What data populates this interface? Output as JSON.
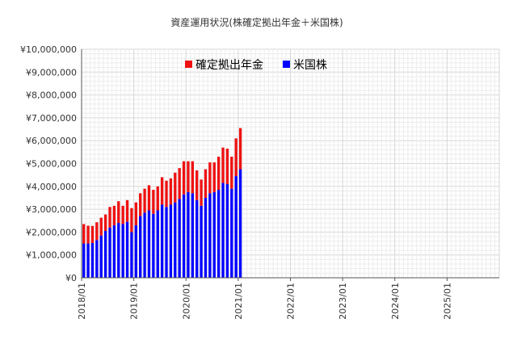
{
  "chart_data": {
    "type": "bar",
    "stacked": true,
    "title": "資産運用状況(株確定拠出年金＋米国株)",
    "xlabel": "",
    "ylabel": "",
    "ylim": [
      0,
      10000000
    ],
    "y_ticks": [
      0,
      1000000,
      2000000,
      3000000,
      4000000,
      5000000,
      6000000,
      7000000,
      8000000,
      9000000,
      10000000
    ],
    "y_tick_labels": [
      "¥0",
      "¥1,000,000",
      "¥2,000,000",
      "¥3,000,000",
      "¥4,000,000",
      "¥5,000,000",
      "¥6,000,000",
      "¥7,000,000",
      "¥8,000,000",
      "¥9,000,000",
      "¥10,000,000"
    ],
    "x_range": [
      "2018-01",
      "2025-12"
    ],
    "x_tick_labels": [
      "2018/01",
      "2019/01",
      "2020/01",
      "2021/01",
      "2022/01",
      "2023/01",
      "2024/01",
      "2025/01"
    ],
    "grid": true,
    "legend_position": "top-center",
    "categories": [
      "2018-01",
      "2018-02",
      "2018-03",
      "2018-04",
      "2018-05",
      "2018-06",
      "2018-07",
      "2018-08",
      "2018-09",
      "2018-10",
      "2018-11",
      "2018-12",
      "2019-01",
      "2019-02",
      "2019-03",
      "2019-04",
      "2019-05",
      "2019-06",
      "2019-07",
      "2019-08",
      "2019-09",
      "2019-10",
      "2019-11",
      "2019-12",
      "2020-01",
      "2020-02",
      "2020-03",
      "2020-04",
      "2020-05",
      "2020-06",
      "2020-07",
      "2020-08",
      "2020-09",
      "2020-10",
      "2020-11",
      "2020-12",
      "2021-01"
    ],
    "series": [
      {
        "name": "米国株",
        "color": "#0000ff",
        "values": [
          1500000,
          1500000,
          1520000,
          1650000,
          1850000,
          2050000,
          2200000,
          2300000,
          2400000,
          2350000,
          2450000,
          2000000,
          2300000,
          2700000,
          2850000,
          2950000,
          2800000,
          2950000,
          3200000,
          3100000,
          3200000,
          3300000,
          3450000,
          3650000,
          3750000,
          3700000,
          3400000,
          3150000,
          3500000,
          3700000,
          3750000,
          3850000,
          4150000,
          4100000,
          3900000,
          4450000,
          4750000
        ]
      },
      {
        "name": "確定拠出年金",
        "color": "#ee1111",
        "values": [
          850000,
          780000,
          750000,
          780000,
          780000,
          720000,
          900000,
          850000,
          950000,
          800000,
          950000,
          1050000,
          1000000,
          1000000,
          1050000,
          1100000,
          1050000,
          1050000,
          1200000,
          1150000,
          1150000,
          1300000,
          1350000,
          1450000,
          1350000,
          1400000,
          1300000,
          1150000,
          1250000,
          1350000,
          1300000,
          1450000,
          1550000,
          1550000,
          1400000,
          1650000,
          1800000
        ]
      }
    ]
  }
}
